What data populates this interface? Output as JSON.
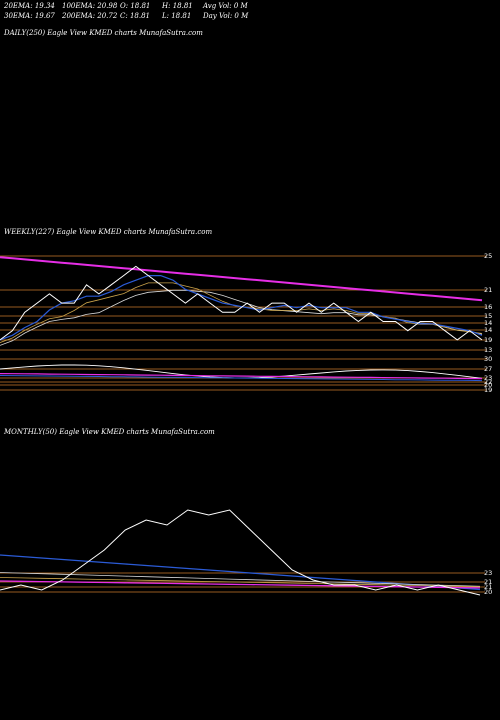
{
  "header": {
    "ema20": "20EMA: 19.34",
    "ema100": "100EMA: 20.98",
    "open": "O: 18.81",
    "high": "H: 18.81",
    "avg_vol": "Avg Vol: 0  M",
    "ema30": "30EMA: 19.67",
    "ema200": "200EMA: 20.72",
    "close": "C: 18.81",
    "low": "L: 18.81",
    "day_vol": "Day Vol: 0  M"
  },
  "panels": {
    "daily_title": "DAILY(250) Eagle  View  KMED charts MunafaSutra.com",
    "weekly_title": "WEEKLY(227) Eagle  View  KMED charts MunafaSutra.com",
    "monthly_title": "MONTHLY(50) Eagle  View  KMED charts MunafaSutra.com"
  },
  "colors": {
    "price": "#ffffff",
    "ema_fast": "#2b5bd6",
    "ema_mid": "#c9a24a",
    "ema_slow": "#d9d9d9",
    "ema_long": "#e62ee6",
    "level": "#c8782a"
  },
  "chart_data": [
    {
      "type": "line",
      "title": "WEEKLY(227) Eagle  View  KMED charts MunafaSutra.com",
      "tick_labels": [
        "25",
        "21",
        "16",
        "15",
        "14",
        "14",
        "19",
        "13",
        "30",
        "27",
        "23",
        "22",
        "20",
        "19"
      ],
      "series": [
        {
          "values": [
            18,
            19,
            21,
            22,
            23,
            22,
            22,
            24,
            23,
            24,
            25,
            26,
            25,
            24,
            23,
            22,
            23,
            22,
            21,
            21,
            22,
            21,
            22,
            22,
            21,
            22,
            21,
            22,
            21,
            20,
            21,
            20,
            20,
            19,
            20,
            20,
            19,
            18,
            19,
            18
          ]
        }
      ]
    },
    {
      "type": "line",
      "title": "MONTHLY(50) Eagle  View  KMED charts MunafaSutra.com",
      "tick_labels": [
        "23",
        "21",
        "21",
        "20"
      ],
      "series": [
        {
          "values": [
            20,
            21,
            20,
            22,
            25,
            28,
            32,
            34,
            33,
            36,
            35,
            36,
            32,
            28,
            24,
            22,
            21,
            21,
            20,
            21,
            20,
            21,
            20,
            19
          ]
        }
      ]
    }
  ]
}
